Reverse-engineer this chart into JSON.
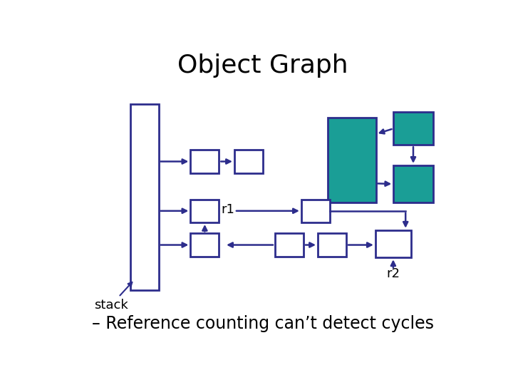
{
  "title": "Object Graph",
  "subtitle": "– Reference counting can’t detect cycles",
  "bg_color": "#ffffff",
  "box_edge_color": "#2d2d8c",
  "teal_color": "#1a9e96",
  "title_fontsize": 26,
  "subtitle_fontsize": 17,
  "label_fontsize": 13,
  "stack_label": "stack",
  "r1_label": "r1",
  "r2_label": "r2"
}
